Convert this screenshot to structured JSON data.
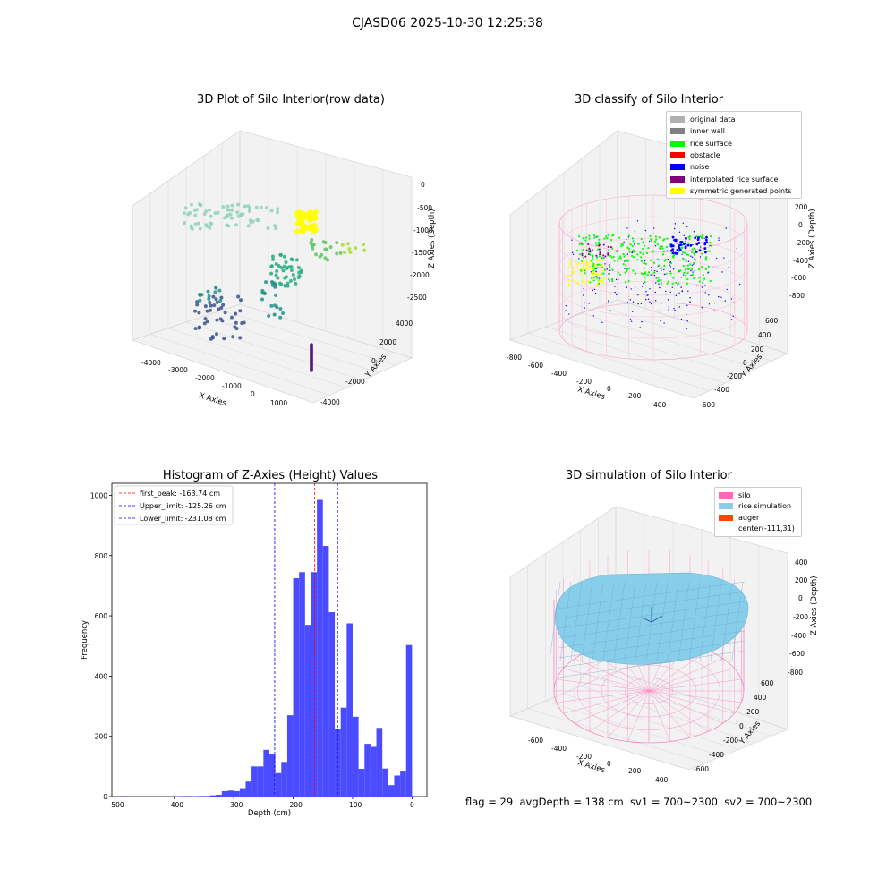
{
  "figure": {
    "suptitle": "CJASD06 2025-10-30 12:25:38",
    "footer": "flag = 29  avgDepth = 138 cm  sv1 = 700~2300  sv2 = 700~2300"
  },
  "colors": {
    "silo": "#ff69b4",
    "rice_simulation": "#87ceeb",
    "auger": "#ff4500",
    "original": "#b0b0b0",
    "inner_wall": "#808080",
    "rice_surface": "#00ff00",
    "obstacle": "#ff0000",
    "noise": "#0000ff",
    "interpolated": "#800080",
    "symmetric": "#ffff00",
    "hist_bar": "#4b4bff"
  },
  "chart_data": [
    {
      "type": "scatter",
      "title": "3D Plot of Silo Interior(row data)",
      "xlabel": "X Axies",
      "ylabel": "Y Axies",
      "zlabel": "Z Axies (Depth)",
      "x_ticks": [
        "-4000",
        "-3000",
        "-2000",
        "-1000",
        "0",
        "1000"
      ],
      "y_ticks": [
        "-4000",
        "-2000",
        "0",
        "2000",
        "4000"
      ],
      "z_ticks": [
        "0",
        "-500",
        "-1000",
        "-1500",
        "-2000",
        "-2500"
      ],
      "colormap": "viridis by depth",
      "grid": true
    },
    {
      "type": "scatter",
      "title": "3D classify of Silo Interior",
      "xlabel": "X Axies",
      "ylabel": "Y Axies",
      "zlabel": "Z Axies (Depth)",
      "x_ticks": [
        "-800",
        "-600",
        "-400",
        "-200",
        "0",
        "200",
        "400"
      ],
      "y_ticks": [
        "-600",
        "-400",
        "-200",
        "0",
        "200",
        "400",
        "600"
      ],
      "z_ticks": [
        "200",
        "0",
        "-200",
        "-400",
        "-600",
        "-800"
      ],
      "legend_placement": "top-right",
      "legend": [
        "original data",
        "inner wall",
        "rice surface",
        "obstacle",
        "noise",
        "interpolated rice surface",
        "symmetric generated points"
      ],
      "grid": true
    },
    {
      "type": "bar",
      "title": "Histogram of Z-Axies (Height) Values",
      "xlabel": "Depth (cm)",
      "ylabel": "Frequency",
      "xlim": [
        -505,
        25
      ],
      "ylim": [
        0,
        1040
      ],
      "x_ticks": [
        -500,
        -400,
        -300,
        -200,
        -100,
        0
      ],
      "y_ticks": [
        0,
        200,
        400,
        600,
        800,
        1000
      ],
      "bin_width": 10,
      "bins": [
        {
          "x0": -490,
          "v": 2
        },
        {
          "x0": -400,
          "v": 1
        },
        {
          "x0": -390,
          "v": 2
        },
        {
          "x0": -370,
          "v": 1
        },
        {
          "x0": -360,
          "v": 2
        },
        {
          "x0": -350,
          "v": 2
        },
        {
          "x0": -340,
          "v": 4
        },
        {
          "x0": -330,
          "v": 6
        },
        {
          "x0": -320,
          "v": 18
        },
        {
          "x0": -310,
          "v": 20
        },
        {
          "x0": -300,
          "v": 18
        },
        {
          "x0": -290,
          "v": 25
        },
        {
          "x0": -280,
          "v": 50
        },
        {
          "x0": -270,
          "v": 100
        },
        {
          "x0": -260,
          "v": 100
        },
        {
          "x0": -250,
          "v": 155
        },
        {
          "x0": -240,
          "v": 142
        },
        {
          "x0": -230,
          "v": 78
        },
        {
          "x0": -220,
          "v": 115
        },
        {
          "x0": -210,
          "v": 270
        },
        {
          "x0": -200,
          "v": 725
        },
        {
          "x0": -190,
          "v": 745
        },
        {
          "x0": -180,
          "v": 570
        },
        {
          "x0": -170,
          "v": 745
        },
        {
          "x0": -160,
          "v": 985
        },
        {
          "x0": -150,
          "v": 832
        },
        {
          "x0": -140,
          "v": 612
        },
        {
          "x0": -130,
          "v": 225
        },
        {
          "x0": -120,
          "v": 295
        },
        {
          "x0": -110,
          "v": 575
        },
        {
          "x0": -100,
          "v": 265
        },
        {
          "x0": -90,
          "v": 92
        },
        {
          "x0": -80,
          "v": 175
        },
        {
          "x0": -70,
          "v": 165
        },
        {
          "x0": -60,
          "v": 228
        },
        {
          "x0": -50,
          "v": 93
        },
        {
          "x0": -40,
          "v": 38
        },
        {
          "x0": -30,
          "v": 70
        },
        {
          "x0": -20,
          "v": 83
        },
        {
          "x0": -10,
          "v": 503
        }
      ],
      "vlines": [
        {
          "label": "first_peak: -163.74 cm",
          "x": -163.74,
          "color": "#ff0000"
        },
        {
          "label": "Upper_limit: -125.26 cm",
          "x": -125.26,
          "color": "#0000ff"
        },
        {
          "label": "Lower_limit: -231.08 cm",
          "x": -231.08,
          "color": "#0000ff"
        }
      ],
      "legend_placement": "top-left"
    },
    {
      "type": "scatter",
      "title": "3D simulation of Silo Interior",
      "xlabel": "X Axies",
      "ylabel": "Y Axies",
      "zlabel": "Z Axies (Depth)",
      "x_ticks": [
        "-600",
        "-400",
        "-200",
        "0",
        "200",
        "400"
      ],
      "y_ticks": [
        "-600",
        "-400",
        "-200",
        "0",
        "200",
        "400",
        "600"
      ],
      "z_ticks": [
        "400",
        "200",
        "0",
        "-200",
        "-400",
        "-600",
        "-800"
      ],
      "legend_placement": "top-right",
      "legend": [
        "silo",
        "rice simulation",
        "auger",
        "center(-111,31)"
      ],
      "grid": true
    }
  ]
}
